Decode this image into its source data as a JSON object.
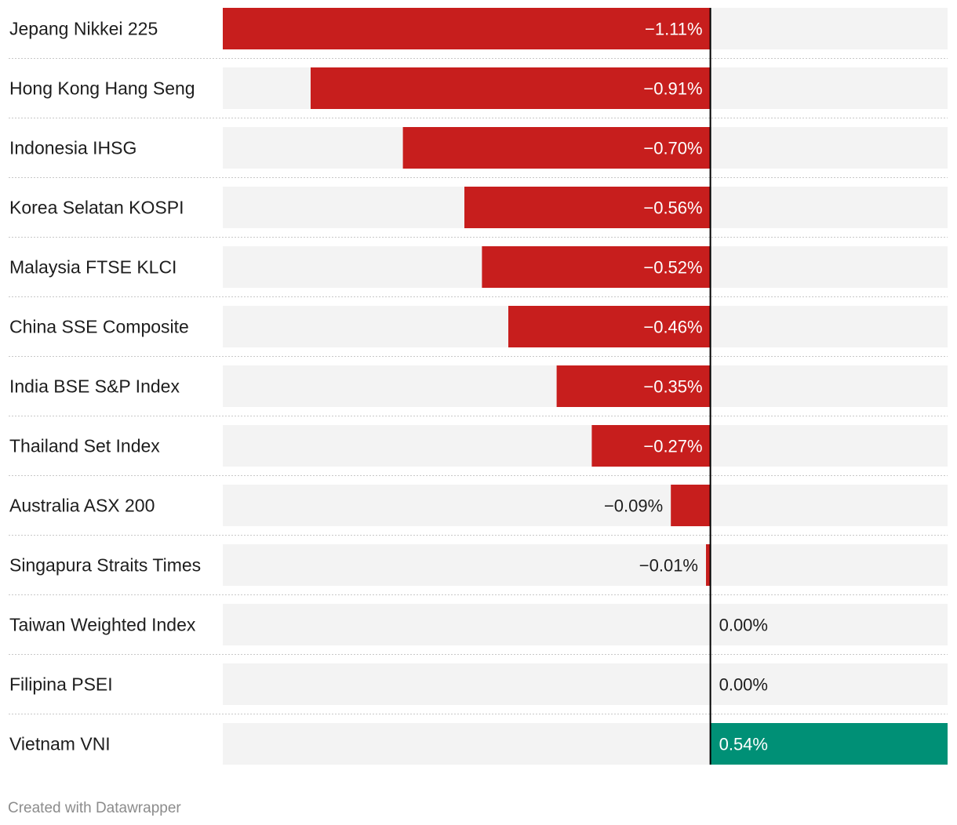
{
  "chart_data": {
    "type": "bar",
    "orientation": "horizontal",
    "categories": [
      "Jepang Nikkei 225",
      "Hong Kong Hang Seng",
      "Indonesia IHSG",
      "Korea Selatan KOSPI",
      "Malaysia FTSE KLCI",
      "China SSE Composite",
      "India BSE S&P Index",
      "Thailand Set Index",
      "Australia ASX 200",
      "Singapura Straits Times",
      "Taiwan Weighted Index",
      "Filipina PSEI",
      "Vietnam VNI"
    ],
    "values": [
      -1.11,
      -0.91,
      -0.7,
      -0.56,
      -0.52,
      -0.46,
      -0.35,
      -0.27,
      -0.09,
      -0.01,
      0.0,
      0.0,
      0.54
    ],
    "value_labels": [
      "−1.11%",
      "−0.91%",
      "−0.70%",
      "−0.56%",
      "−0.52%",
      "−0.46%",
      "−0.35%",
      "−0.27%",
      "−0.09%",
      "−0.01%",
      "0.00%",
      "0.00%",
      "0.54%"
    ],
    "xlim": [
      -1.11,
      0.54
    ],
    "negative_color": "#c71e1d",
    "positive_color": "#009076",
    "track_color": "#f3f3f3",
    "title": "",
    "xlabel": "",
    "ylabel": "",
    "grid": false,
    "legend": "none"
  },
  "footer": {
    "credit": "Created with Datawrapper"
  }
}
